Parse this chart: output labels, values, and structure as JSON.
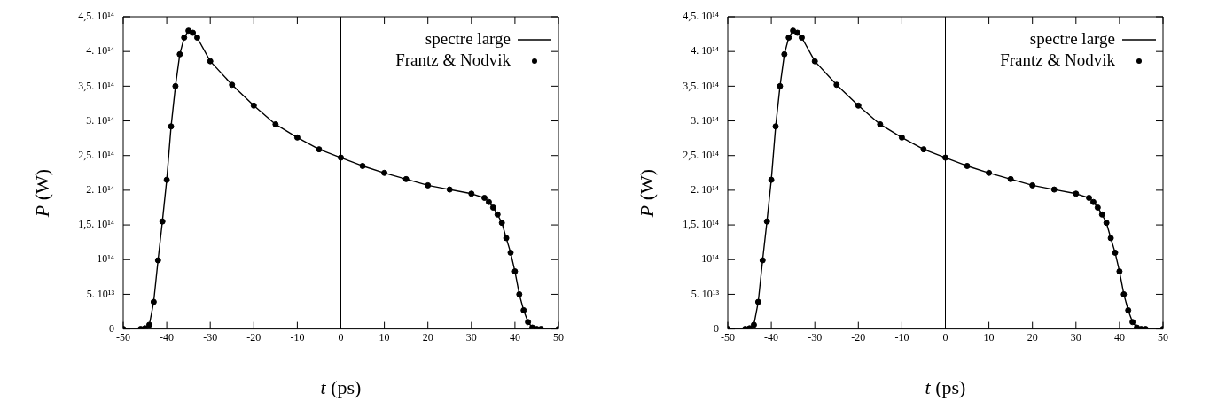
{
  "chart_data": [
    {
      "type": "line",
      "xlabel": "t (ps)",
      "ylabel": "P (W)",
      "xlim": [
        -50,
        50
      ],
      "xticks": [
        -50,
        -40,
        -30,
        -20,
        -10,
        0,
        10,
        20,
        30,
        40,
        50
      ],
      "ylim": [
        0,
        450000000000000.0
      ],
      "yticks": [
        {
          "value": 0,
          "label": "0"
        },
        {
          "value": 50000000000000.0,
          "label": "5. 10¹³"
        },
        {
          "value": 100000000000000.0,
          "label": "10¹⁴"
        },
        {
          "value": 150000000000000.0,
          "label": "1,5. 10¹⁴"
        },
        {
          "value": 200000000000000.0,
          "label": "2. 10¹⁴"
        },
        {
          "value": 250000000000000.0,
          "label": "2,5. 10¹⁴"
        },
        {
          "value": 300000000000000.0,
          "label": "3. 10¹⁴"
        },
        {
          "value": 350000000000000.0,
          "label": "3,5. 10¹⁴"
        },
        {
          "value": 400000000000000.0,
          "label": "4. 10¹⁴"
        },
        {
          "value": 450000000000000.0,
          "label": "4,5. 10¹⁴"
        }
      ],
      "x": [
        -50,
        -46,
        -45,
        -44,
        -43,
        -42,
        -41,
        -40,
        -39,
        -38,
        -37,
        -36,
        -35,
        -34,
        -33,
        -30,
        -25,
        -20,
        -15,
        -10,
        -5,
        0,
        5,
        10,
        15,
        20,
        25,
        30,
        33,
        34,
        35,
        36,
        37,
        38,
        39,
        40,
        41,
        42,
        43,
        44,
        45,
        46,
        50
      ],
      "series": [
        {
          "name": "spectre large",
          "type": "line",
          "color": "#000000",
          "values": [
            0,
            0,
            1000000000000.0,
            6000000000000.0,
            39000000000000.0,
            99000000000000.0,
            155000000000000.0,
            215000000000000.0,
            292000000000000.0,
            350000000000000.0,
            396000000000000.0,
            420000000000000.0,
            430000000000000.0,
            427000000000000.0,
            420000000000000.0,
            386000000000000.0,
            352000000000000.0,
            322000000000000.0,
            295000000000000.0,
            276000000000000.0,
            259000000000000.0,
            247000000000000.0,
            235000000000000.0,
            225000000000000.0,
            216000000000000.0,
            207000000000000.0,
            201000000000000.0,
            195000000000000.0,
            189000000000000.0,
            183000000000000.0,
            175000000000000.0,
            165000000000000.0,
            153000000000000.0,
            131000000000000.0,
            110000000000000.0,
            83000000000000.0,
            50000000000000.0,
            27000000000000.0,
            10000000000000.0,
            2000000000000.0,
            0,
            0,
            0
          ]
        },
        {
          "name": "Frantz & Nodvik",
          "type": "scatter",
          "color": "#000000",
          "marker": "circle",
          "values": [
            0,
            0,
            1000000000000.0,
            6000000000000.0,
            39000000000000.0,
            99000000000000.0,
            155000000000000.0,
            215000000000000.0,
            292000000000000.0,
            350000000000000.0,
            396000000000000.0,
            420000000000000.0,
            430000000000000.0,
            427000000000000.0,
            420000000000000.0,
            386000000000000.0,
            352000000000000.0,
            322000000000000.0,
            295000000000000.0,
            276000000000000.0,
            259000000000000.0,
            247000000000000.0,
            235000000000000.0,
            225000000000000.0,
            216000000000000.0,
            207000000000000.0,
            201000000000000.0,
            195000000000000.0,
            189000000000000.0,
            183000000000000.0,
            175000000000000.0,
            165000000000000.0,
            153000000000000.0,
            131000000000000.0,
            110000000000000.0,
            83000000000000.0,
            50000000000000.0,
            27000000000000.0,
            10000000000000.0,
            2000000000000.0,
            0,
            0,
            0
          ]
        }
      ],
      "ref_lines": [
        {
          "axis": "x",
          "value": 0
        }
      ],
      "legend": "top right",
      "grid": false
    },
    {
      "type": "line",
      "xlabel": "t (ps)",
      "ylabel": "P (W)",
      "xlim": [
        -50,
        50
      ],
      "xticks": [
        -50,
        -40,
        -30,
        -20,
        -10,
        0,
        10,
        20,
        30,
        40,
        50
      ],
      "ylim": [
        0,
        450000000000000.0
      ],
      "yticks": [
        {
          "value": 0,
          "label": "0"
        },
        {
          "value": 50000000000000.0,
          "label": "5. 10¹³"
        },
        {
          "value": 100000000000000.0,
          "label": "10¹⁴"
        },
        {
          "value": 150000000000000.0,
          "label": "1,5. 10¹⁴"
        },
        {
          "value": 200000000000000.0,
          "label": "2. 10¹⁴"
        },
        {
          "value": 250000000000000.0,
          "label": "2,5. 10¹⁴"
        },
        {
          "value": 300000000000000.0,
          "label": "3. 10¹⁴"
        },
        {
          "value": 350000000000000.0,
          "label": "3,5. 10¹⁴"
        },
        {
          "value": 400000000000000.0,
          "label": "4. 10¹⁴"
        },
        {
          "value": 450000000000000.0,
          "label": "4,5. 10¹⁴"
        }
      ],
      "x": [
        -50,
        -46,
        -45,
        -44,
        -43,
        -42,
        -41,
        -40,
        -39,
        -38,
        -37,
        -36,
        -35,
        -34,
        -33,
        -30,
        -25,
        -20,
        -15,
        -10,
        -5,
        0,
        5,
        10,
        15,
        20,
        25,
        30,
        33,
        34,
        35,
        36,
        37,
        38,
        39,
        40,
        41,
        42,
        43,
        44,
        45,
        46,
        50
      ],
      "series": [
        {
          "name": "spectre large",
          "type": "line",
          "color": "#000000",
          "values": [
            0,
            0,
            1000000000000.0,
            6000000000000.0,
            39000000000000.0,
            99000000000000.0,
            155000000000000.0,
            215000000000000.0,
            292000000000000.0,
            350000000000000.0,
            396000000000000.0,
            420000000000000.0,
            430000000000000.0,
            427000000000000.0,
            420000000000000.0,
            386000000000000.0,
            352000000000000.0,
            322000000000000.0,
            295000000000000.0,
            276000000000000.0,
            259000000000000.0,
            247000000000000.0,
            235000000000000.0,
            225000000000000.0,
            216000000000000.0,
            207000000000000.0,
            201000000000000.0,
            195000000000000.0,
            189000000000000.0,
            183000000000000.0,
            175000000000000.0,
            165000000000000.0,
            153000000000000.0,
            131000000000000.0,
            110000000000000.0,
            83000000000000.0,
            50000000000000.0,
            27000000000000.0,
            10000000000000.0,
            2000000000000.0,
            0,
            0,
            0
          ]
        },
        {
          "name": "Frantz & Nodvik",
          "type": "scatter",
          "color": "#000000",
          "marker": "circle",
          "values": [
            0,
            0,
            1000000000000.0,
            6000000000000.0,
            39000000000000.0,
            99000000000000.0,
            155000000000000.0,
            215000000000000.0,
            292000000000000.0,
            350000000000000.0,
            396000000000000.0,
            420000000000000.0,
            430000000000000.0,
            427000000000000.0,
            420000000000000.0,
            386000000000000.0,
            352000000000000.0,
            322000000000000.0,
            295000000000000.0,
            276000000000000.0,
            259000000000000.0,
            247000000000000.0,
            235000000000000.0,
            225000000000000.0,
            216000000000000.0,
            207000000000000.0,
            201000000000000.0,
            195000000000000.0,
            189000000000000.0,
            183000000000000.0,
            175000000000000.0,
            165000000000000.0,
            153000000000000.0,
            131000000000000.0,
            110000000000000.0,
            83000000000000.0,
            50000000000000.0,
            27000000000000.0,
            10000000000000.0,
            2000000000000.0,
            0,
            0,
            0
          ]
        }
      ],
      "ref_lines": [
        {
          "axis": "x",
          "value": 0
        }
      ],
      "legend": "top right",
      "grid": false
    }
  ]
}
